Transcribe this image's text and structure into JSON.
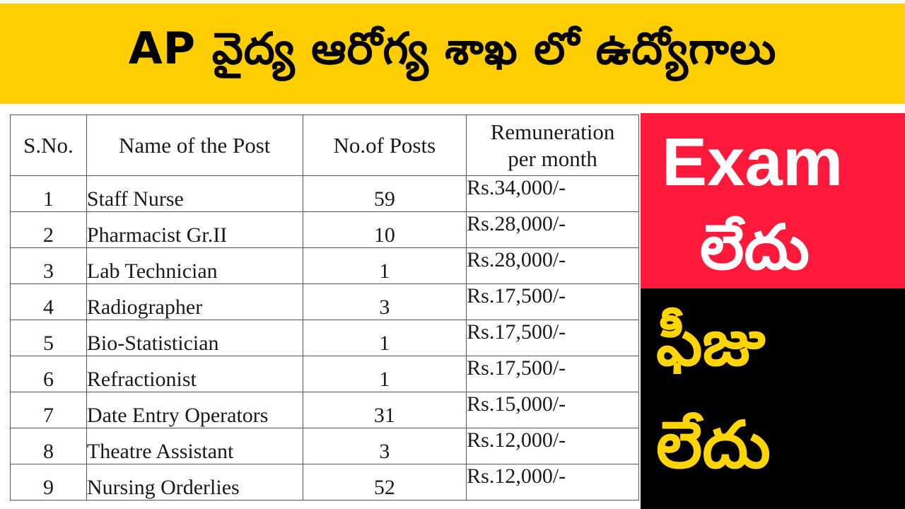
{
  "banner": {
    "title": "AP వైద్య ఆరోగ్య శాఖ లో ఉద్యోగాలు",
    "background": "#ffce00"
  },
  "table": {
    "headers": {
      "sno": "S.No.",
      "name": "Name of the Post",
      "posts": "No.of Posts",
      "remuneration_line1": "Remuneration",
      "remuneration_line2": "per month"
    },
    "rows": [
      {
        "sno": "1",
        "name": "Staff Nurse",
        "posts": "59",
        "pay": "Rs.34,000/-"
      },
      {
        "sno": "2",
        "name": "Pharmacist Gr.II",
        "posts": "10",
        "pay": "Rs.28,000/-"
      },
      {
        "sno": "3",
        "name": "Lab Technician",
        "posts": "1",
        "pay": "Rs.28,000/-"
      },
      {
        "sno": "4",
        "name": "Radiographer",
        "posts": "3",
        "pay": "Rs.17,500/-"
      },
      {
        "sno": "5",
        "name": "Bio-Statistician",
        "posts": "1",
        "pay": "Rs.17,500/-"
      },
      {
        "sno": "6",
        "name": "Refractionist",
        "posts": "1",
        "pay": "Rs.17,500/-"
      },
      {
        "sno": "7",
        "name": "Date Entry Operators",
        "posts": "31",
        "pay": "Rs.15,000/-"
      },
      {
        "sno": "8",
        "name": "Theatre Assistant",
        "posts": "3",
        "pay": "Rs.12,000/-"
      },
      {
        "sno": "9",
        "name": "Nursing Orderlies",
        "posts": "52",
        "pay": "Rs.12,000/-"
      }
    ]
  },
  "side": {
    "exam_label": "Exam",
    "exam_status": "లేదు",
    "fee_label": "ఫీజు",
    "fee_status": "లేదు",
    "colors": {
      "red_panel": "#ff1a3c",
      "black_panel": "#000000",
      "exam_text": "#ffffff",
      "fee_text": "#ffd500"
    }
  }
}
